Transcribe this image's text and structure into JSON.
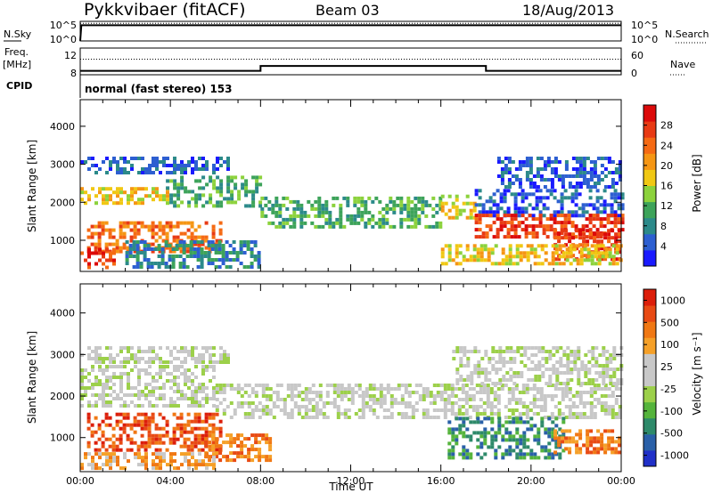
{
  "header": {
    "station": "Pykkvibaer (fitACF)",
    "beam": "Beam 03",
    "date": "18/Aug/2013"
  },
  "colors": {
    "frame": "#000000",
    "gray_velocity": "#c8c8c8"
  },
  "chart_data": [
    {
      "type": "line",
      "panel": "noise",
      "left_label": "N.Sky",
      "right_label": "N.Search",
      "left_ticks": [
        "10^5",
        "10^0"
      ],
      "right_ticks": [
        "10^5",
        "10^0"
      ],
      "ylim_log10": [
        0,
        5
      ],
      "series": [
        {
          "name": "N.Sky",
          "style": "solid",
          "x_hours": [
            0.0,
            0.05,
            0.1,
            24.0
          ],
          "y_log10": [
            0.0,
            4.0,
            4.0,
            4.0
          ]
        },
        {
          "name": "N.Search",
          "style": "dotted",
          "x_hours": [
            0.0,
            24.0
          ],
          "y_log10": [
            4.5,
            4.5
          ]
        }
      ]
    },
    {
      "type": "line",
      "panel": "frequency",
      "left_label_lines": [
        "Freq.",
        "[MHz]"
      ],
      "left_ticks": [
        "12",
        "8"
      ],
      "right_label": "Nave",
      "right_ticks": [
        "60",
        "0"
      ],
      "ylim": [
        7.5,
        13
      ],
      "series": [
        {
          "name": "Freq.",
          "style": "solid",
          "x_hours": [
            0,
            8,
            8,
            18,
            18,
            24
          ],
          "y": [
            8.3,
            8.3,
            9.3,
            9.3,
            8.3,
            8.3
          ]
        },
        {
          "name": "Nave",
          "style": "dotted",
          "x_hours": [
            0,
            24
          ],
          "y_right": [
            35,
            35
          ]
        }
      ]
    },
    {
      "type": "table",
      "panel": "cpid",
      "label": "CPID",
      "text": "normal (fast stereo) 153"
    },
    {
      "type": "heatmap",
      "panel": "power",
      "ylabel": "Slant Range [km]",
      "yticks": [
        1000,
        2000,
        3000,
        4000
      ],
      "ylim": [
        180,
        4700
      ],
      "xlim_hours": [
        0,
        24
      ],
      "colorbar": {
        "label": "Power [dB]",
        "tick_labels": [
          "4",
          "8",
          "12",
          "16",
          "20",
          "24",
          "28"
        ],
        "colors": [
          "#1a1aff",
          "#2d5fd1",
          "#2c8a8a",
          "#3da35a",
          "#8cd23c",
          "#f0c814",
          "#f59614",
          "#f56a14",
          "#e83a14",
          "#dc0a0a"
        ]
      },
      "bands": [
        {
          "t": [
            0.0,
            3.8
          ],
          "range": [
            1950,
            2400
          ],
          "level": 5
        },
        {
          "t": [
            3.8,
            8.0
          ],
          "range": [
            1950,
            2700
          ],
          "level": 3
        },
        {
          "t": [
            8.0,
            16.0
          ],
          "range": [
            1400,
            2150
          ],
          "level": 3
        },
        {
          "t": [
            16.0,
            17.5
          ],
          "range": [
            1550,
            2200
          ],
          "level": 5
        },
        {
          "t": [
            17.5,
            24.0
          ],
          "range": [
            1650,
            2350
          ],
          "level": 1
        },
        {
          "t": [
            0.3,
            6.2
          ],
          "range": [
            700,
            1500
          ],
          "level": 7
        },
        {
          "t": [
            0.0,
            1.5
          ],
          "range": [
            300,
            800
          ],
          "level": 8
        },
        {
          "t": [
            2.0,
            8.0
          ],
          "range": [
            300,
            1000
          ],
          "level": 2
        },
        {
          "t": [
            17.5,
            24.0
          ],
          "range": [
            1050,
            1700
          ],
          "level": 8
        },
        {
          "t": [
            21.0,
            24.0
          ],
          "range": [
            550,
            1300
          ],
          "level": 8
        },
        {
          "t": [
            16.0,
            24.0
          ],
          "range": [
            350,
            900
          ],
          "level": 5
        },
        {
          "t": [
            0.0,
            6.5
          ],
          "range": [
            2800,
            3200
          ],
          "level": 1
        },
        {
          "t": [
            18.5,
            24.0
          ],
          "range": [
            2400,
            3200
          ],
          "level": 1
        }
      ]
    },
    {
      "type": "heatmap",
      "panel": "velocity",
      "ylabel": "Slant Range [km]",
      "xlabel": "Time UT",
      "yticks": [
        1000,
        2000,
        3000,
        4000
      ],
      "ylim": [
        180,
        4700
      ],
      "xlim_hours": [
        0,
        24
      ],
      "xtick_labels": [
        "00:00",
        "04:00",
        "08:00",
        "12:00",
        "16:00",
        "20:00",
        "00:00"
      ],
      "xtick_hours": [
        0,
        4,
        8,
        12,
        16,
        20,
        24
      ],
      "colorbar": {
        "label": "Velocity [m s⁻¹]",
        "tick_labels": [
          "1000",
          "500",
          "100",
          "25",
          "-25",
          "-100",
          "-500",
          "-1000"
        ],
        "colors": [
          "#2030c8",
          "#2a60a8",
          "#2e8a6a",
          "#55b43c",
          "#9cd04a",
          "#c8c8c8",
          "#c8c8c8",
          "#f5a028",
          "#f07814",
          "#e84a14",
          "#dc1e0a"
        ]
      },
      "bands": [
        {
          "t": [
            0.0,
            6.0
          ],
          "range": [
            1750,
            2750
          ],
          "level": 5
        },
        {
          "t": [
            6.0,
            24.0
          ],
          "range": [
            1450,
            2300
          ],
          "level": 5
        },
        {
          "t": [
            0.3,
            6.2
          ],
          "range": [
            700,
            1600
          ],
          "level": 9
        },
        {
          "t": [
            5.5,
            8.5
          ],
          "range": [
            500,
            1100
          ],
          "level": 8
        },
        {
          "t": [
            0.0,
            6.0
          ],
          "range": [
            250,
            650
          ],
          "level": 7
        },
        {
          "t": [
            16.3,
            21.5
          ],
          "range": [
            550,
            1500
          ],
          "level": 2
        },
        {
          "t": [
            21.0,
            24.0
          ],
          "range": [
            650,
            1200
          ],
          "level": 8
        },
        {
          "t": [
            16.5,
            24.0
          ],
          "range": [
            2300,
            3200
          ],
          "level": 5
        },
        {
          "t": [
            0.0,
            6.5
          ],
          "range": [
            2800,
            3200
          ],
          "level": 5
        }
      ]
    }
  ]
}
